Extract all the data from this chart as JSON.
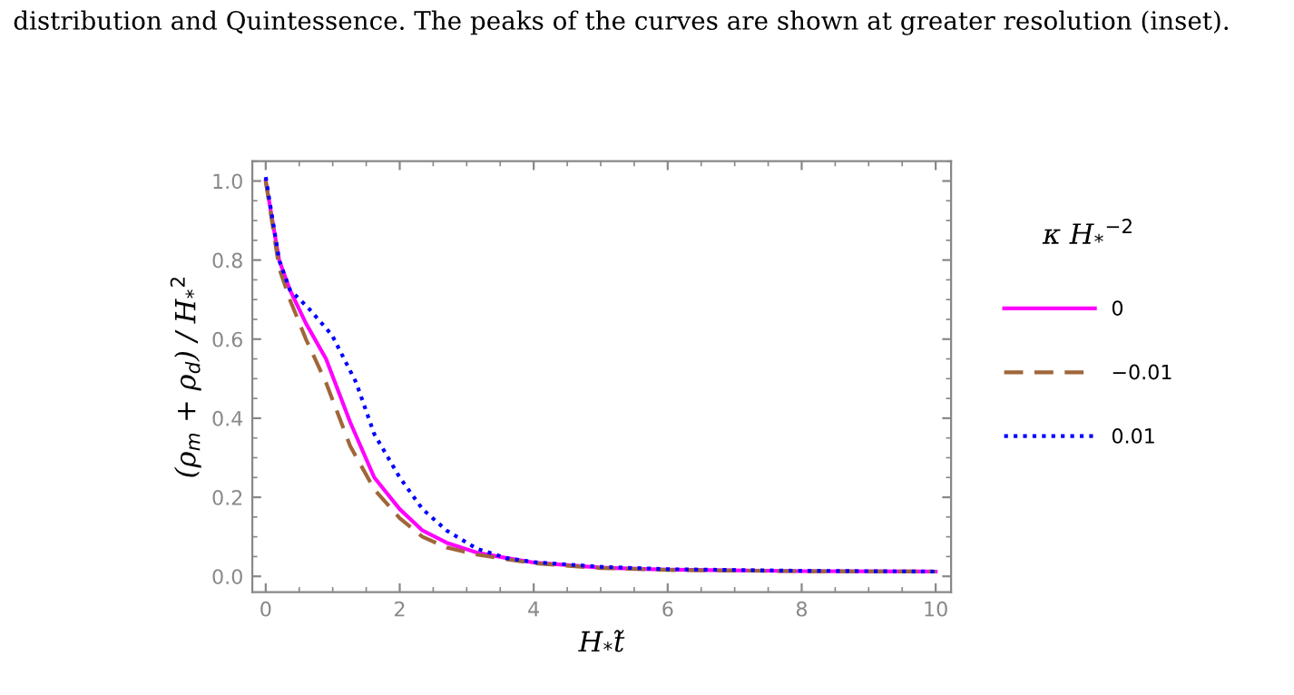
{
  "chart_data": {
    "type": "line",
    "xlabel": "H$_{*}$t̃",
    "ylabel": "(ρ$_{m}$ + ρ$_{d}$) / H$_{*}$$^{2}$",
    "legend_title": "κ H$_{*}$$^{−2}$",
    "annotations": [
      "distribution and Quintessence. The peaks of the curves are shown at greater resolution (inset)."
    ],
    "xlim": [
      -0.2,
      10.23
    ],
    "ylim": [
      -0.04,
      1.05
    ],
    "xticks": [
      0,
      2,
      4,
      6,
      8,
      10
    ],
    "yticks": [
      {
        "value": 0,
        "label": "0.0"
      },
      {
        "value": 0.2,
        "label": "0.2"
      },
      {
        "value": 0.4,
        "label": "0.4"
      },
      {
        "value": 0.6,
        "label": "0.6"
      },
      {
        "value": 0.8,
        "label": "0.8"
      },
      {
        "value": 1,
        "label": "1.0"
      }
    ],
    "grid": false,
    "legend": "right",
    "series": [
      {
        "name": "0",
        "color": "#ff00ff",
        "line_style": "solid",
        "x": [
          0,
          0.2,
          0.36,
          0.6,
          0.9,
          1.26,
          1.62,
          2.0,
          2.34,
          2.7,
          3.15,
          3.6,
          4,
          5,
          6,
          8,
          10
        ],
        "values": [
          1.0,
          0.8,
          0.725,
          0.64,
          0.55,
          0.39,
          0.25,
          0.17,
          0.116,
          0.085,
          0.06,
          0.046,
          0.035,
          0.022,
          0.017,
          0.013,
          0.012
        ]
      },
      {
        "name": "−0.01",
        "color": "#a0663a",
        "line_style": "dashed",
        "x": [
          0,
          0.2,
          0.36,
          0.6,
          0.9,
          1.26,
          1.62,
          2.0,
          2.34,
          2.7,
          3.15,
          3.6,
          4,
          5,
          6,
          8,
          10
        ],
        "values": [
          1.0,
          0.78,
          0.7,
          0.6,
          0.49,
          0.33,
          0.22,
          0.147,
          0.1,
          0.073,
          0.055,
          0.043,
          0.033,
          0.021,
          0.016,
          0.013,
          0.012
        ]
      },
      {
        "name": "0.01",
        "color": "#0000ff",
        "line_style": "dotted",
        "x": [
          0,
          0.2,
          0.36,
          0.63,
          0.99,
          1.35,
          1.62,
          2.0,
          2.34,
          2.7,
          3.15,
          3.6,
          4,
          5,
          6,
          8,
          10
        ],
        "values": [
          1.01,
          0.8,
          0.725,
          0.68,
          0.61,
          0.49,
          0.36,
          0.25,
          0.17,
          0.116,
          0.07,
          0.046,
          0.036,
          0.024,
          0.018,
          0.014,
          0.012
        ]
      }
    ]
  }
}
